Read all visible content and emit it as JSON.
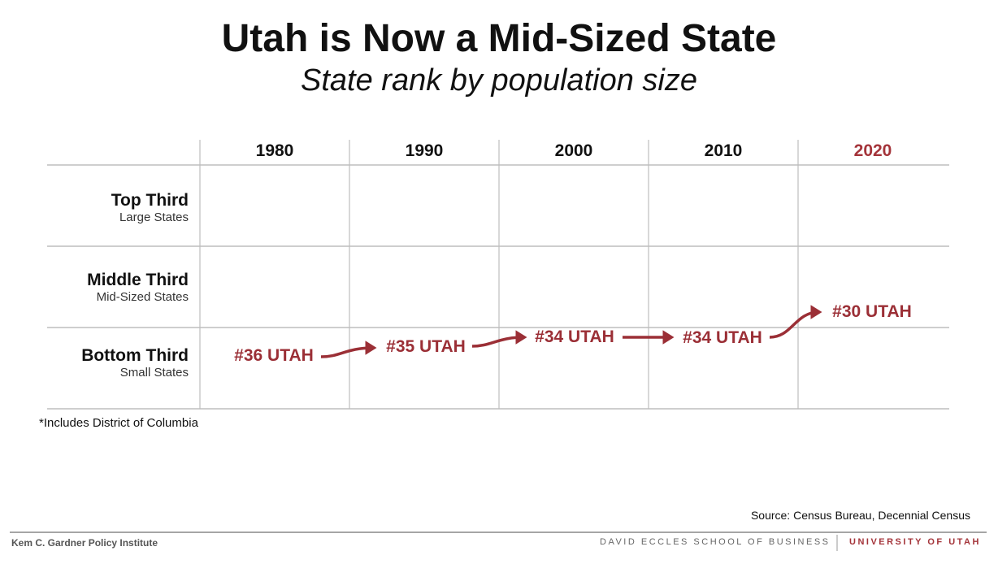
{
  "title": "Utah is Now a Mid-Sized State",
  "subtitle": "State rank by population size",
  "chart_data": {
    "type": "table",
    "columns": [
      "1980",
      "1990",
      "2000",
      "2010",
      "2020"
    ],
    "highlight_column": "2020",
    "rows": [
      {
        "label": "Top Third",
        "sublabel": "Large States"
      },
      {
        "label": "Middle Third",
        "sublabel": "Mid-Sized States"
      },
      {
        "label": "Bottom Third",
        "sublabel": "Small States"
      }
    ],
    "values": [
      {
        "year": "1980",
        "rank": 36,
        "label": "#36 UTAH",
        "tier": "Bottom Third"
      },
      {
        "year": "1990",
        "rank": 35,
        "label": "#35 UTAH",
        "tier": "Bottom Third"
      },
      {
        "year": "2000",
        "rank": 34,
        "label": "#34 UTAH",
        "tier": "Bottom Third"
      },
      {
        "year": "2010",
        "rank": 34,
        "label": "#34 UTAH",
        "tier": "Bottom Third"
      },
      {
        "year": "2020",
        "rank": 30,
        "label": "#30 UTAH",
        "tier": "Middle Third"
      }
    ],
    "grid": true
  },
  "colors": {
    "accent": "#9b2f36",
    "header_2020": "#a4343a",
    "grid": "#bdbdbd"
  },
  "note": "*Includes District of Columbia",
  "source": "Source:  Census Bureau, Decennial Census",
  "footer": {
    "left": "Kem C. Gardner Policy Institute",
    "middle": "DAVID ECCLES SCHOOL OF BUSINESS",
    "right": "UNIVERSITY OF UTAH"
  }
}
